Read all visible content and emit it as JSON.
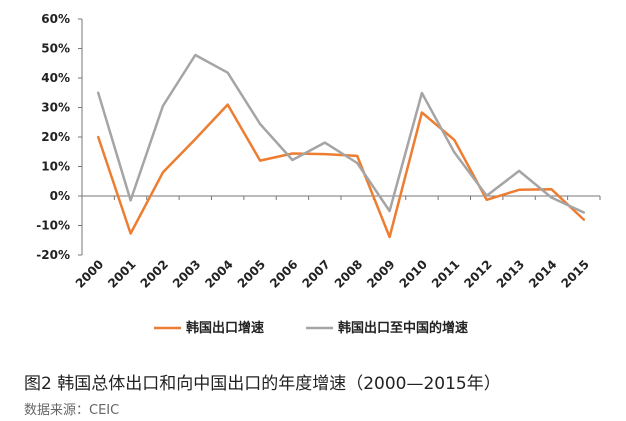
{
  "chart_data": {
    "type": "line",
    "x": [
      "2000",
      "2001",
      "2002",
      "2003",
      "2004",
      "2005",
      "2006",
      "2007",
      "2008",
      "2009",
      "2010",
      "2011",
      "2012",
      "2013",
      "2014",
      "2015"
    ],
    "y_ticks": [
      "60%",
      "50%",
      "40%",
      "30%",
      "20%",
      "10%",
      "0%",
      "-10%",
      "-20%"
    ],
    "ylim": [
      -20,
      60
    ],
    "series": [
      {
        "name": "韩国出口增速",
        "color": "#ED7D31",
        "values": [
          20,
          -12.7,
          8,
          19.3,
          31,
          12,
          14.4,
          14.2,
          13.6,
          -13.9,
          28.3,
          19,
          -1.3,
          2.1,
          2.3,
          -8
        ]
      },
      {
        "name": "韩国出口至中国的增速",
        "color": "#A5A5A5",
        "values": [
          35,
          -1.5,
          30.5,
          47.8,
          41.8,
          24.4,
          12.2,
          18.1,
          11.2,
          -5.1,
          34.9,
          14.8,
          0.1,
          8.5,
          -0.5,
          -5.6
        ]
      }
    ],
    "legend_position": "bottom",
    "grid": false
  },
  "caption": "图2 韩国总体出口和向中国出口的年度增速（2000—2015年）",
  "source": "数据来源：CEIC"
}
